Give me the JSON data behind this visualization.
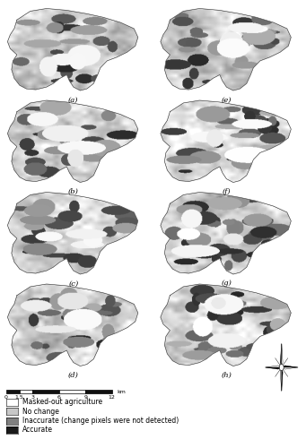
{
  "figsize": [
    3.41,
    5.0
  ],
  "dpi": 100,
  "panel_labels": [
    "(a)",
    "(b)",
    "(c)",
    "(d)",
    "(e)",
    "(f)",
    "(g)",
    "(h)"
  ],
  "legend_colors": [
    "#ffffff",
    "#c8c8c8",
    "#808080",
    "#1a1a1a"
  ],
  "legend_labels": [
    "Masked-out agriculture",
    "No change",
    "Inaccurate (change pixels were not detected)",
    "Accurate"
  ],
  "scalebar_ticks": [
    0,
    1.5,
    3,
    6,
    9,
    12
  ],
  "background_color": "#ffffff",
  "font_size_labels": 6,
  "font_size_legend": 5.5,
  "font_size_scalebar": 4.5
}
